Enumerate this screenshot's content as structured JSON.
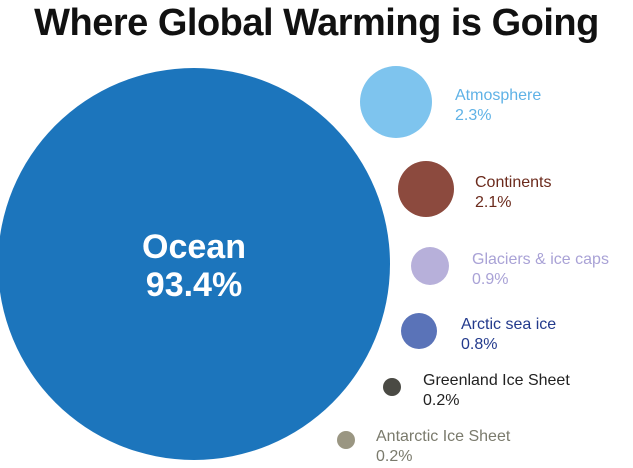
{
  "chart_data": {
    "type": "bubble",
    "title": "Where Global Warming is Going",
    "series": [
      {
        "name": "Ocean",
        "label": "93.4%",
        "value": 93.4,
        "color": "#1c75bc"
      },
      {
        "name": "Atmosphere",
        "label": "2.3%",
        "value": 2.3,
        "color": "#7ec4ee"
      },
      {
        "name": "Continents",
        "label": "2.1%",
        "value": 2.1,
        "color": "#8c4a3e"
      },
      {
        "name": "Glaciers & ice caps",
        "label": "0.9%",
        "value": 0.9,
        "color": "#b7b0da"
      },
      {
        "name": "Arctic sea ice",
        "label": "0.8%",
        "value": 0.8,
        "color": "#5a73b8"
      },
      {
        "name": "Greenland Ice Sheet",
        "label": "0.2%",
        "value": 0.2,
        "color": "#4a4a44"
      },
      {
        "name": "Antarctic Ice Sheet",
        "label": "0.2%",
        "value": 0.2,
        "color": "#9a9682"
      }
    ],
    "label_colors": {
      "Ocean": "#ffffff",
      "Atmosphere": "#5fb2e6",
      "Continents": "#6b2a1c",
      "Glaciers & ice caps": "#a9a2d6",
      "Arctic sea ice": "#233a8c",
      "Greenland Ice Sheet": "#222222",
      "Antarctic Ice Sheet": "#7a7a6c"
    }
  }
}
